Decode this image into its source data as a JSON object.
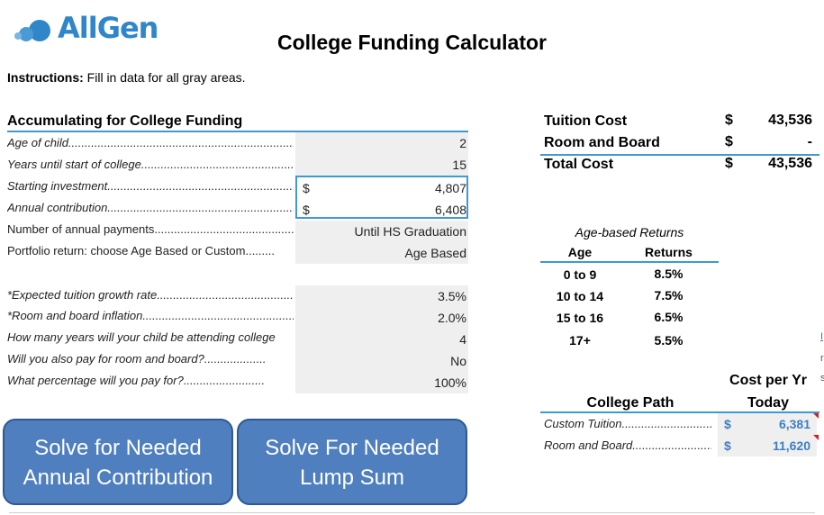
{
  "logo": {
    "text": "AllGen",
    "accent": "#2f86c8"
  },
  "title": "College Funding Calculator",
  "instructions": {
    "bold": "Instructions:",
    "text": " Fill in data for all gray areas."
  },
  "section": {
    "title": "Accumulating for College Funding"
  },
  "rows": [
    {
      "label": "Age of child.......................................................................",
      "value": "2"
    },
    {
      "label": "Years until start of college........................................................",
      "value": "15"
    },
    {
      "label": "Starting investment..................................................................",
      "currency": "$",
      "value": "4,807"
    },
    {
      "label": "Annual contribution..................................................................",
      "currency": "$",
      "value": "6,408"
    },
    {
      "label": "Number of annual payments.....................................................",
      "value": "Until HS Graduation"
    },
    {
      "label": "Portfolio return: choose Age Based or Custom.........",
      "value": "Age Based"
    },
    {
      "label": "*Expected tuition growth rate.................................................",
      "value": "3.5%"
    },
    {
      "label": "*Room and board inflation.......................................................",
      "value": "2.0%"
    },
    {
      "label": "How many years will your child be attending college",
      "value": "4"
    },
    {
      "label": "Will you also pay for room and board?...................",
      "value": "No"
    },
    {
      "label": "What percentage will you pay for?.........................",
      "value": "100%"
    }
  ],
  "buttons": {
    "annual": {
      "line1": "Solve for Needed",
      "line2": "Annual Contribution"
    },
    "lump": {
      "line1": "Solve For Needed",
      "line2": "Lump Sum"
    }
  },
  "costs": [
    {
      "label": "Tuition Cost",
      "currency": "$",
      "value": "43,536"
    },
    {
      "label": "Room and Board",
      "currency": "$",
      "value": "-"
    },
    {
      "label": "Total Cost",
      "currency": "$",
      "value": "43,536"
    }
  ],
  "age_based": {
    "title": "Age-based Returns",
    "headers": {
      "age": "Age",
      "returns": "Returns"
    },
    "rows": [
      {
        "age": "0 to 9",
        "ret": "8.5%"
      },
      {
        "age": "10 to 14",
        "ret": "7.5%"
      },
      {
        "age": "15 to 16",
        "ret": "6.5%"
      },
      {
        "age": "17+",
        "ret": "5.5%"
      }
    ]
  },
  "college_path": {
    "header_left": "College Path",
    "header_right_1": "Cost per Yr",
    "header_right_2": "Today",
    "rows": [
      {
        "label": "Custom Tuition...........................................",
        "currency": "$",
        "value": "6,381"
      },
      {
        "label": "Room and Board........................................",
        "currency": "$",
        "value": "11,620"
      }
    ]
  },
  "edge_marks": [
    "I",
    "r",
    "s"
  ]
}
